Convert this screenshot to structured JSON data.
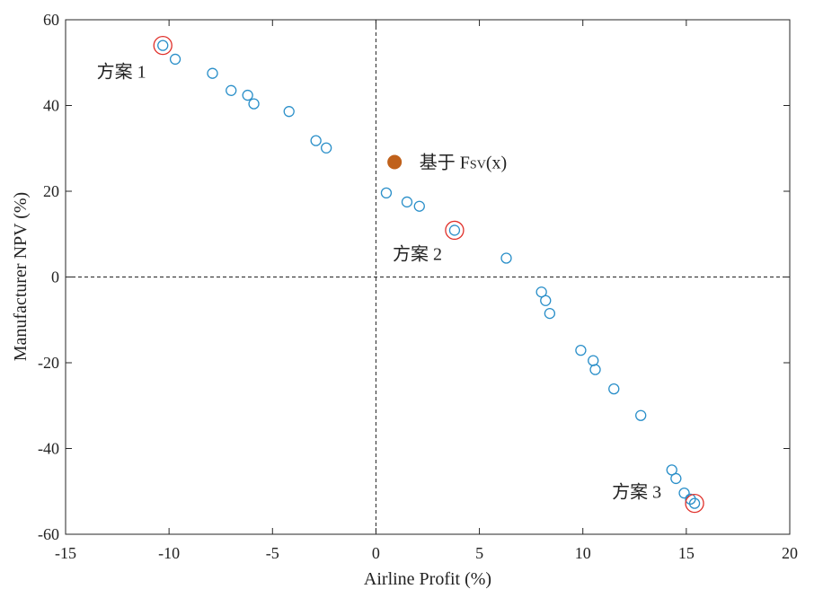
{
  "chart_data": {
    "type": "scatter",
    "title": "",
    "xlabel": "Airline Profit (%)",
    "ylabel": "Manufacturer NPV (%)",
    "xlim": [
      -15,
      20
    ],
    "ylim": [
      -60,
      60
    ],
    "xticks": [
      -15,
      -10,
      -5,
      0,
      5,
      10,
      15,
      20
    ],
    "yticks": [
      -60,
      -40,
      -20,
      0,
      20,
      40,
      60
    ],
    "xtick_labels": [
      "-15",
      "-10",
      "-5",
      "0",
      "5",
      "10",
      "15",
      "20"
    ],
    "ytick_labels": [
      "-60",
      "-40",
      "-20",
      "0",
      "20",
      "40",
      "60"
    ],
    "grid": false,
    "reference_lines": {
      "x": 0,
      "y": 0,
      "style": "dashed"
    },
    "series": [
      {
        "marker": "open-circle",
        "color": "#2a8fc9",
        "points": [
          [
            -10.3,
            54.0
          ],
          [
            -9.7,
            50.8
          ],
          [
            -7.9,
            47.5
          ],
          [
            -7.0,
            43.5
          ],
          [
            -6.2,
            42.4
          ],
          [
            -5.9,
            40.4
          ],
          [
            -4.2,
            38.6
          ],
          [
            -2.9,
            31.8
          ],
          [
            -2.4,
            30.1
          ],
          [
            0.5,
            19.6
          ],
          [
            1.5,
            17.5
          ],
          [
            2.1,
            16.5
          ],
          [
            3.8,
            10.9
          ],
          [
            6.3,
            4.4
          ],
          [
            8.0,
            -3.5
          ],
          [
            8.2,
            -5.5
          ],
          [
            8.4,
            -8.5
          ],
          [
            9.9,
            -17.1
          ],
          [
            10.5,
            -19.5
          ],
          [
            10.6,
            -21.6
          ],
          [
            11.5,
            -26.1
          ],
          [
            12.8,
            -32.3
          ],
          [
            14.3,
            -45.0
          ],
          [
            14.5,
            -47.0
          ],
          [
            14.9,
            -50.4
          ],
          [
            15.2,
            -51.8
          ],
          [
            15.4,
            -52.8
          ]
        ]
      },
      {
        "marker": "filled-circle",
        "color": "#c0611b",
        "points": [
          [
            0.9,
            26.8
          ]
        ]
      }
    ],
    "highlighted": {
      "marker": "red-ring",
      "color": "#e0302a",
      "points": [
        [
          -10.3,
          54.0
        ],
        [
          3.8,
          10.9
        ],
        [
          15.4,
          -52.8
        ]
      ]
    },
    "annotations": [
      {
        "text": "方案 1",
        "x": -12.3,
        "y": 46.5
      },
      {
        "text": "方案 2",
        "x": 2.0,
        "y": 4.0
      },
      {
        "text": "方案 3",
        "x": 12.6,
        "y": -51.5
      }
    ],
    "filled_point_label": {
      "main": "基于 F",
      "sub": "SV",
      "tail": "(x)",
      "x": 2.1,
      "y": 26.8
    }
  }
}
